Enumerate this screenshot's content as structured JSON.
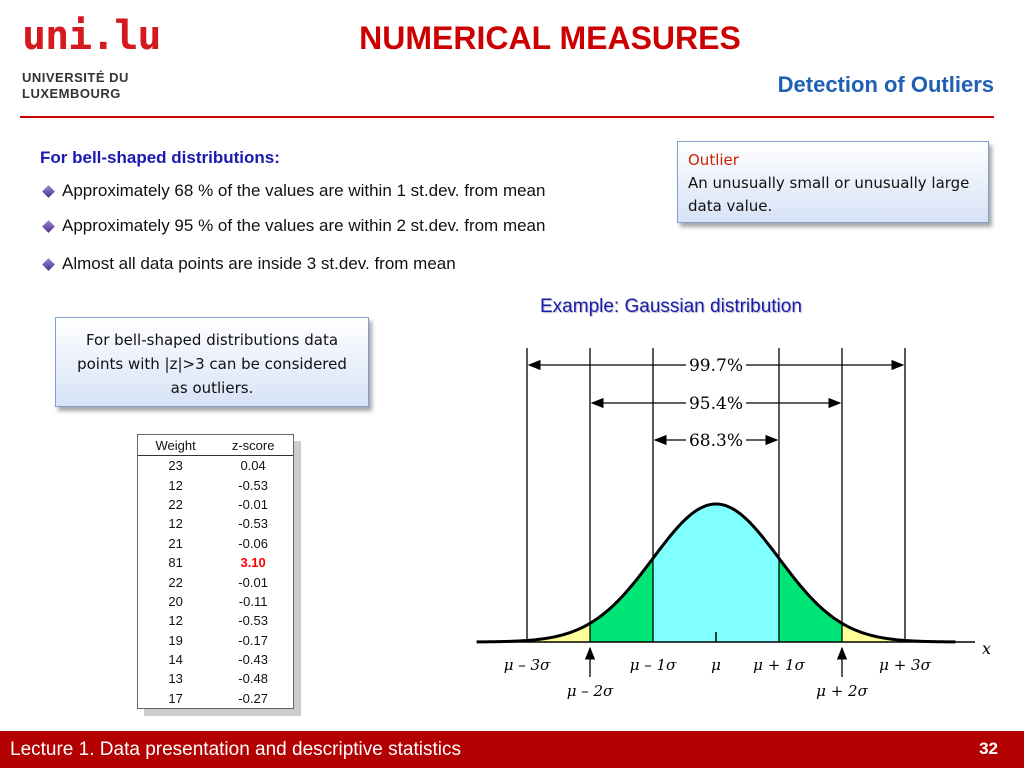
{
  "header": {
    "logo": {
      "mark": "uni.lu",
      "line1": "UNIVERSITÉ DU",
      "line2": "LUXEMBOURG"
    },
    "title": "NUMERICAL MEASURES",
    "subtitle": "Detection of Outliers"
  },
  "content": {
    "heading": "For bell-shaped distributions:",
    "bullets": [
      "Approximately 68 % of the values are within 1 st.dev. from mean",
      "Approximately 95 % of the values are within 2 st.dev. from mean",
      "Almost all data points are inside 3 st.dev. from mean"
    ],
    "outlier_box": {
      "title": "Outlier",
      "text": "An unusually small or unusually large data value."
    },
    "z_note": "For bell-shaped distributions data points with |z|>3 can be considered as outliers.",
    "example_label": "Example: Gaussian distribution"
  },
  "table": {
    "headers": [
      "Weight",
      "z-score"
    ],
    "highlight_color": "#ff0000",
    "rows": [
      [
        "23",
        "0.04"
      ],
      [
        "12",
        "-0.53"
      ],
      [
        "22",
        "-0.01"
      ],
      [
        "12",
        "-0.53"
      ],
      [
        "21",
        "-0.06"
      ],
      [
        "81",
        "3.10"
      ],
      [
        "22",
        "-0.01"
      ],
      [
        "20",
        "-0.11"
      ],
      [
        "12",
        "-0.53"
      ],
      [
        "19",
        "-0.17"
      ],
      [
        "14",
        "-0.43"
      ],
      [
        "13",
        "-0.48"
      ],
      [
        "17",
        "-0.27"
      ]
    ],
    "highlight_row": 5
  },
  "chart_data": {
    "type": "area",
    "title": "",
    "xlabel": "x",
    "ylabel": "",
    "xlim": [
      -3.8,
      3.8
    ],
    "x_ticks": [
      "μ – 3σ",
      "μ – 2σ",
      "μ – 1σ",
      "μ",
      "μ + 1σ",
      "μ + 2σ",
      "μ + 3σ"
    ],
    "x_tick_values": [
      -3,
      -2,
      -1,
      0,
      1,
      2,
      3
    ],
    "regions": [
      {
        "from": -1,
        "to": 1,
        "color": "#80ffff"
      },
      {
        "from": -2,
        "to": -1,
        "color": "#00e676"
      },
      {
        "from": 1,
        "to": 2,
        "color": "#00e676"
      },
      {
        "from": -3,
        "to": -2,
        "color": "#ffff99"
      },
      {
        "from": 2,
        "to": 3,
        "color": "#ffff99"
      }
    ],
    "intervals": [
      {
        "label": "99.7%",
        "from": -3,
        "to": 3
      },
      {
        "label": "95.4%",
        "from": -2,
        "to": 2
      },
      {
        "label": "68.3%",
        "from": -1,
        "to": 1
      }
    ]
  },
  "footer": {
    "text": "Lecture 1. Data presentation and descriptive statistics",
    "page": "32"
  }
}
